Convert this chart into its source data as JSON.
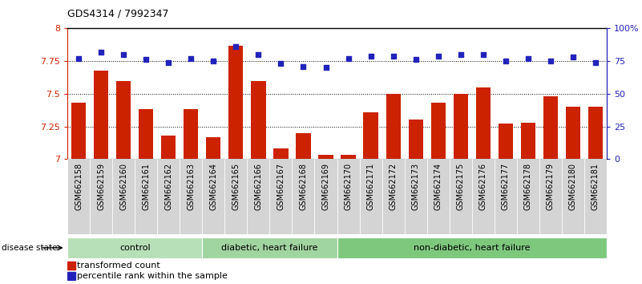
{
  "title": "GDS4314 / 7992347",
  "samples": [
    "GSM662158",
    "GSM662159",
    "GSM662160",
    "GSM662161",
    "GSM662162",
    "GSM662163",
    "GSM662164",
    "GSM662165",
    "GSM662166",
    "GSM662167",
    "GSM662168",
    "GSM662169",
    "GSM662170",
    "GSM662171",
    "GSM662172",
    "GSM662173",
    "GSM662174",
    "GSM662175",
    "GSM662176",
    "GSM662177",
    "GSM662178",
    "GSM662179",
    "GSM662180",
    "GSM662181"
  ],
  "bar_values": [
    7.43,
    7.68,
    7.6,
    7.38,
    7.18,
    7.38,
    7.17,
    7.87,
    7.6,
    7.08,
    7.2,
    7.03,
    7.03,
    7.36,
    7.5,
    7.3,
    7.43,
    7.5,
    7.55,
    7.27,
    7.28,
    7.48,
    7.4,
    7.4
  ],
  "percentile_values": [
    77,
    82,
    80,
    76,
    74,
    77,
    75,
    86,
    80,
    73,
    71,
    70,
    77,
    79,
    79,
    76,
    79,
    80,
    80,
    75,
    77,
    75,
    78,
    74
  ],
  "group_labels": [
    "control",
    "diabetic, heart failure",
    "non-diabetic, heart failure"
  ],
  "group_colors": [
    "#b8e0b8",
    "#a0d4a0",
    "#7ec87e"
  ],
  "group_starts": [
    0,
    6,
    12
  ],
  "group_ends": [
    6,
    12,
    24
  ],
  "ylim_left": [
    7.0,
    8.0
  ],
  "ylim_right": [
    0,
    100
  ],
  "yticks_left": [
    7.0,
    7.25,
    7.5,
    7.75,
    8.0
  ],
  "ytick_labels_left": [
    "7",
    "7.25",
    "7.5",
    "7.75",
    "8"
  ],
  "yticks_right": [
    0,
    25,
    50,
    75,
    100
  ],
  "ytick_labels_right": [
    "0",
    "25",
    "50",
    "75",
    "100%"
  ],
  "bar_color": "#cc2200",
  "dot_color": "#2222bb",
  "bar_baseline": 7.0,
  "legend_bar": "transformed count",
  "legend_dot": "percentile rank within the sample",
  "disease_state_label": "disease state",
  "dotted_lines": [
    7.25,
    7.5,
    7.75
  ]
}
